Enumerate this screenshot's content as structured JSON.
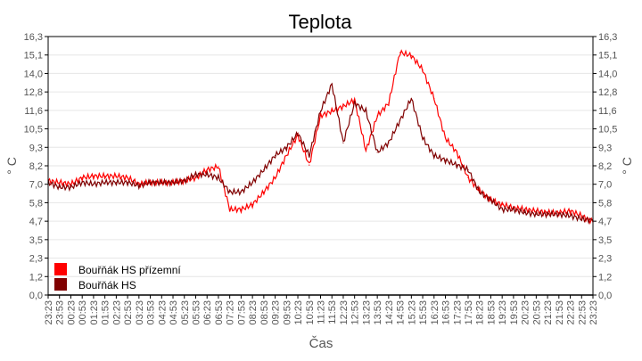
{
  "chart_data": {
    "type": "line",
    "title": "Teplota",
    "xlabel": "Čas",
    "ylabel": "° C",
    "ylabel_right": "° C",
    "ylim": [
      0,
      16.3
    ],
    "yticks": [
      "0,0",
      "1,2",
      "2,3",
      "3,5",
      "4,7",
      "5,8",
      "7,0",
      "8,2",
      "9,3",
      "10,5",
      "11,6",
      "12,8",
      "14,0",
      "15,1",
      "16,3"
    ],
    "ytick_values": [
      0,
      1.165,
      2.329,
      3.493,
      4.657,
      5.821,
      6.986,
      8.15,
      9.314,
      10.479,
      11.643,
      12.807,
      13.971,
      15.136,
      16.3
    ],
    "grid": true,
    "legend_position": "bottom-left",
    "categories": [
      "23:23",
      "23:53",
      "00:23",
      "00:53",
      "01:23",
      "01:53",
      "02:23",
      "02:53",
      "03:23",
      "03:53",
      "04:23",
      "04:53",
      "05:23",
      "05:53",
      "06:23",
      "06:53",
      "07:23",
      "07:53",
      "08:23",
      "08:53",
      "09:23",
      "09:53",
      "10:23",
      "10:53",
      "11:23",
      "11:53",
      "12:23",
      "12:53",
      "13:23",
      "13:53",
      "14:23",
      "14:53",
      "15:23",
      "15:53",
      "16:23",
      "16:53",
      "17:23",
      "17:53",
      "18:23",
      "18:53",
      "19:23",
      "19:53",
      "20:23",
      "20:53",
      "21:23",
      "21:53",
      "22:23",
      "22:53",
      "23:23"
    ],
    "series": [
      {
        "name": "Bouřňák HS přízemní",
        "color": "#ff0000",
        "values": [
          7.2,
          7.1,
          7.0,
          7.4,
          7.5,
          7.5,
          7.5,
          7.4,
          7.0,
          7.1,
          7.1,
          7.1,
          7.2,
          7.4,
          7.9,
          8.1,
          5.4,
          5.4,
          5.7,
          6.5,
          7.4,
          8.8,
          10.1,
          8.2,
          11.3,
          11.6,
          11.9,
          12.3,
          9.1,
          11.3,
          12.1,
          15.3,
          15.1,
          14.2,
          12.4,
          9.9,
          9.0,
          7.4,
          6.6,
          6.0,
          5.7,
          5.5,
          5.4,
          5.3,
          5.2,
          5.2,
          5.3,
          5.0,
          4.6
        ]
      },
      {
        "name": "Bouřňák HS",
        "color": "#800000",
        "values": [
          7.1,
          6.8,
          6.8,
          7.1,
          7.0,
          7.1,
          7.1,
          7.1,
          6.9,
          7.1,
          7.1,
          7.1,
          7.2,
          7.6,
          7.6,
          7.4,
          6.5,
          6.5,
          7.1,
          7.9,
          8.8,
          9.3,
          10.2,
          8.8,
          11.6,
          13.3,
          9.6,
          12.1,
          11.6,
          9.0,
          9.6,
          11.0,
          12.4,
          9.9,
          8.8,
          8.5,
          8.2,
          7.9,
          6.5,
          6.0,
          5.4,
          5.4,
          5.2,
          5.1,
          5.1,
          5.1,
          5.0,
          4.8,
          4.7
        ]
      }
    ]
  }
}
